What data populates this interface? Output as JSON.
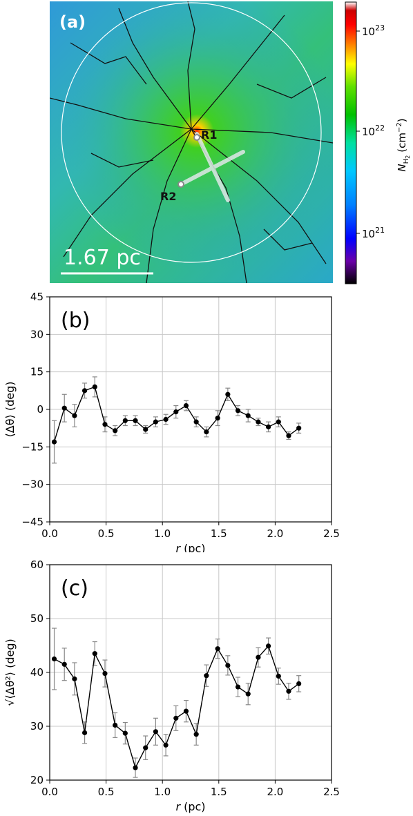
{
  "panel_a": {
    "label": "(a)",
    "scale_label": "1.67 pc",
    "markers": [
      "R1",
      "R2"
    ],
    "colorbar": {
      "label_main": "N",
      "label_sub": "H",
      "label_subsub": "2",
      "label_unit": "(cm",
      "label_unit_exp": "−2",
      "label_unit_close": ")",
      "ticks": [
        {
          "base": "10",
          "exp": "23"
        },
        {
          "base": "10",
          "exp": "22"
        },
        {
          "base": "10",
          "exp": "21"
        }
      ],
      "colors": [
        "#000000",
        "#6a00a8",
        "#0000ff",
        "#0080ff",
        "#00c8ff",
        "#00e0a0",
        "#00c000",
        "#60e000",
        "#ffff00",
        "#ff8000",
        "#ff0000",
        "#cc0000",
        "#ffffff"
      ]
    }
  },
  "chart_data": [
    {
      "type": "line",
      "panel_label": "(b)",
      "xlabel_var": "r",
      "xlabel_unit": "(pc)",
      "ylabel": "⟨Δθ⟩ (deg)",
      "xlim": [
        0,
        2.5
      ],
      "ylim": [
        -45,
        45
      ],
      "xticks": [
        0.0,
        0.5,
        1.0,
        1.5,
        2.0,
        2.5
      ],
      "xtick_labels": [
        "0.0",
        "0.5",
        "1.0",
        "1.5",
        "2.0",
        "2.5"
      ],
      "yticks": [
        -45,
        -30,
        -15,
        0,
        15,
        30,
        45
      ],
      "ytick_labels": [
        "−45",
        "−30",
        "−15",
        "0",
        "15",
        "30",
        "45"
      ],
      "grid": true,
      "x": [
        0.04,
        0.13,
        0.22,
        0.31,
        0.4,
        0.49,
        0.58,
        0.67,
        0.76,
        0.85,
        0.94,
        1.03,
        1.12,
        1.21,
        1.3,
        1.39,
        1.49,
        1.58,
        1.67,
        1.76,
        1.85,
        1.94,
        2.03,
        2.12,
        2.21
      ],
      "y": [
        -13,
        0.5,
        -2.5,
        7.5,
        9,
        -6,
        -8.5,
        -4.5,
        -4.5,
        -8,
        -5,
        -4,
        -1,
        1.5,
        -5,
        -9,
        -3.5,
        6,
        -0.5,
        -2.5,
        -5,
        -7,
        -5,
        -10.5,
        -7.5
      ],
      "err": [
        8.5,
        5.5,
        4.5,
        3,
        4,
        3,
        2,
        2,
        2,
        1.5,
        2,
        2,
        2.5,
        2,
        2,
        2,
        3,
        2.5,
        2,
        2.5,
        1.5,
        2,
        2,
        1.5,
        2
      ]
    },
    {
      "type": "line",
      "panel_label": "(c)",
      "xlabel_var": "r",
      "xlabel_unit": "(pc)",
      "ylabel": "√⟨Δθ²⟩ (deg)",
      "xlim": [
        0,
        2.5
      ],
      "ylim": [
        20,
        60
      ],
      "xticks": [
        0.0,
        0.5,
        1.0,
        1.5,
        2.0,
        2.5
      ],
      "xtick_labels": [
        "0.0",
        "0.5",
        "1.0",
        "1.5",
        "2.0",
        "2.5"
      ],
      "yticks": [
        20,
        30,
        40,
        50,
        60
      ],
      "ytick_labels": [
        "20",
        "30",
        "40",
        "50",
        "60"
      ],
      "grid": true,
      "x": [
        0.04,
        0.13,
        0.22,
        0.31,
        0.4,
        0.49,
        0.58,
        0.67,
        0.76,
        0.85,
        0.94,
        1.03,
        1.12,
        1.21,
        1.3,
        1.39,
        1.49,
        1.58,
        1.67,
        1.76,
        1.85,
        1.94,
        2.03,
        2.12,
        2.21
      ],
      "y": [
        42.5,
        41.5,
        38.8,
        28.8,
        43.5,
        39.8,
        30.2,
        28.7,
        22.3,
        26.0,
        29.0,
        26.5,
        31.5,
        32.8,
        28.5,
        39.4,
        44.4,
        41.3,
        37.3,
        36.0,
        42.8,
        44.9,
        39.3,
        36.5,
        37.9
      ],
      "err": [
        5.7,
        3.0,
        3.0,
        2.0,
        2.2,
        2.5,
        2.3,
        2.0,
        1.8,
        2.2,
        2.5,
        2.0,
        2.3,
        2.0,
        2.0,
        2.0,
        1.8,
        1.8,
        1.8,
        2.0,
        1.8,
        1.5,
        1.5,
        1.5,
        1.5
      ]
    }
  ]
}
